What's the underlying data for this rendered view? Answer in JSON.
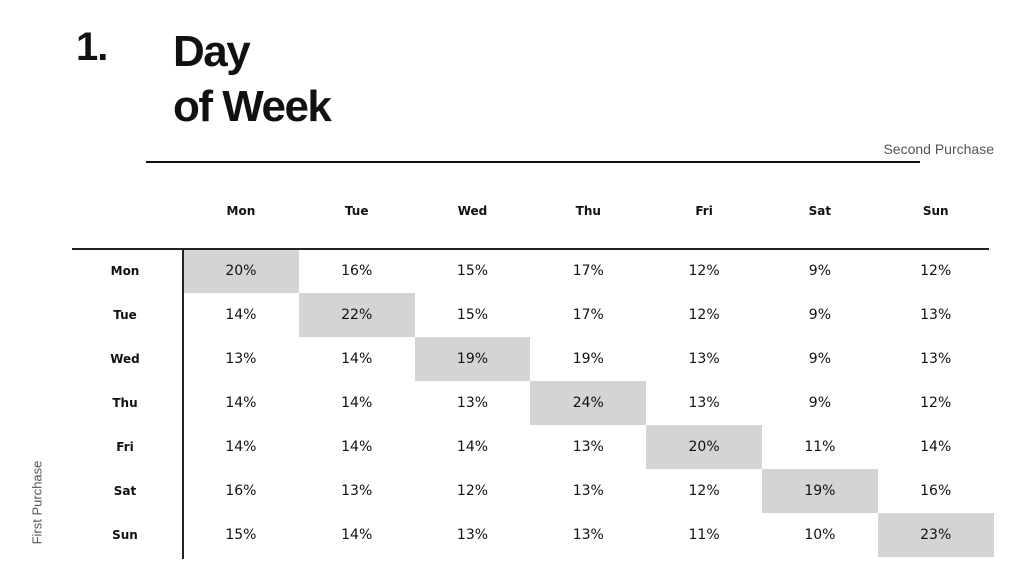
{
  "heading": {
    "number": "1.",
    "title_line1": "Day",
    "title_line2": "of Week"
  },
  "chart_data": {
    "type": "heatmap",
    "xlabel": "Second Purchase",
    "ylabel": "First Purchase",
    "x": [
      "Mon",
      "Tue",
      "Wed",
      "Thu",
      "Fri",
      "Sat",
      "Sun"
    ],
    "y": [
      "Mon",
      "Tue",
      "Wed",
      "Thu",
      "Fri",
      "Sat",
      "Sun"
    ],
    "values": [
      [
        "20%",
        "16%",
        "15%",
        "17%",
        "12%",
        "9%",
        "12%"
      ],
      [
        "14%",
        "22%",
        "15%",
        "17%",
        "12%",
        "9%",
        "13%"
      ],
      [
        "13%",
        "14%",
        "19%",
        "19%",
        "13%",
        "9%",
        "13%"
      ],
      [
        "14%",
        "14%",
        "13%",
        "24%",
        "13%",
        "9%",
        "12%"
      ],
      [
        "14%",
        "14%",
        "14%",
        "13%",
        "20%",
        "11%",
        "14%"
      ],
      [
        "16%",
        "13%",
        "12%",
        "13%",
        "12%",
        "19%",
        "16%"
      ],
      [
        "15%",
        "14%",
        "13%",
        "13%",
        "11%",
        "10%",
        "23%"
      ]
    ],
    "highlight": "diagonal",
    "highlight_color": "#d4d4d4"
  }
}
